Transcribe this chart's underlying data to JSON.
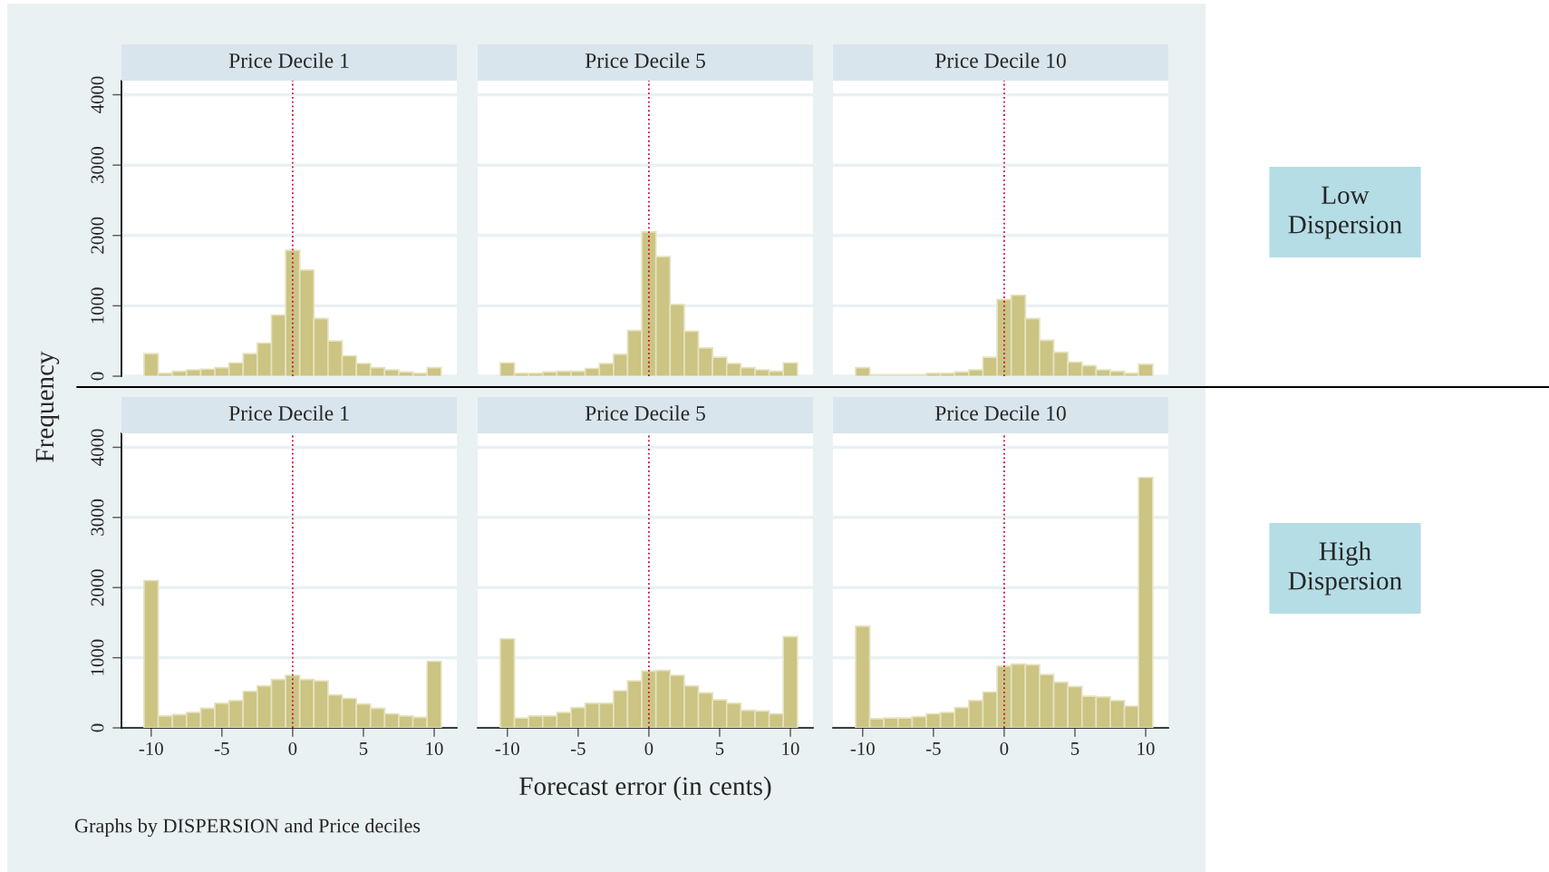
{
  "chart_data": [
    {
      "type": "histogram",
      "title": "Price Decile 1",
      "ylabel": "Frequency",
      "bins": [
        -10.5,
        -9.5,
        -8.5,
        -7.5,
        -6.5,
        -5.5,
        -4.5,
        -3.5,
        -2.5,
        -1.5,
        -0.5,
        0.5,
        1.5,
        2.5,
        3.5,
        4.5,
        5.5,
        6.5,
        7.5,
        8.5,
        9.5,
        10.5
      ],
      "values": [
        320,
        40,
        70,
        90,
        100,
        120,
        190,
        320,
        470,
        870,
        1790,
        1510,
        820,
        500,
        290,
        180,
        120,
        90,
        60,
        40,
        120
      ],
      "color": "#cbc483",
      "xlim": [
        -12.1,
        11.6
      ],
      "ylim": [
        0,
        4200
      ],
      "xticks": [
        -10,
        -5,
        0,
        5,
        10
      ],
      "yticks": [
        0,
        1000,
        2000,
        3000,
        4000
      ],
      "grid": "y",
      "tick_labels": "y",
      "ref_lines": [
        {
          "axis": "x",
          "value": 0,
          "color": "#c8103c",
          "line_style": "dotted"
        }
      ]
    },
    {
      "type": "histogram",
      "title": "Price Decile 5",
      "bins": [
        -10.5,
        -9.5,
        -8.5,
        -7.5,
        -6.5,
        -5.5,
        -4.5,
        -3.5,
        -2.5,
        -1.5,
        -0.5,
        0.5,
        1.5,
        2.5,
        3.5,
        4.5,
        5.5,
        6.5,
        7.5,
        8.5,
        9.5,
        10.5
      ],
      "values": [
        190,
        40,
        40,
        60,
        70,
        70,
        110,
        180,
        310,
        650,
        2050,
        1700,
        1020,
        640,
        400,
        270,
        180,
        120,
        90,
        70,
        190
      ],
      "color": "#cbc483",
      "xlim": [
        -12.1,
        11.6
      ],
      "ylim": [
        0,
        4200
      ],
      "xticks": [
        -10,
        -5,
        0,
        5,
        10
      ],
      "yticks": [
        0,
        1000,
        2000,
        3000,
        4000
      ],
      "grid": "y",
      "tick_labels": false,
      "ref_lines": [
        {
          "axis": "x",
          "value": 0,
          "color": "#c8103c",
          "line_style": "dotted"
        }
      ]
    },
    {
      "type": "histogram",
      "title": "Price Decile 10",
      "annotations": [
        "Low\nDispersion"
      ],
      "bins": [
        -10.5,
        -9.5,
        -8.5,
        -7.5,
        -6.5,
        -5.5,
        -4.5,
        -3.5,
        -2.5,
        -1.5,
        -0.5,
        0.5,
        1.5,
        2.5,
        3.5,
        4.5,
        5.5,
        6.5,
        7.5,
        8.5,
        9.5,
        10.5
      ],
      "values": [
        120,
        20,
        20,
        20,
        20,
        40,
        40,
        60,
        90,
        270,
        1090,
        1150,
        820,
        510,
        340,
        200,
        150,
        90,
        70,
        40,
        170
      ],
      "color": "#cbc483",
      "xlim": [
        -12.1,
        11.6
      ],
      "ylim": [
        0,
        4200
      ],
      "xticks": [
        -10,
        -5,
        0,
        5,
        10
      ],
      "yticks": [
        0,
        1000,
        2000,
        3000,
        4000
      ],
      "grid": "y",
      "tick_labels": false,
      "ref_lines": [
        {
          "axis": "x",
          "value": 0,
          "color": "#c8103c",
          "line_style": "dotted"
        }
      ]
    },
    {
      "type": "histogram",
      "title": "Price Decile 1",
      "annotations": [
        "Graphs by DISPERSION and Price deciles"
      ],
      "bins": [
        -10.5,
        -9.5,
        -8.5,
        -7.5,
        -6.5,
        -5.5,
        -4.5,
        -3.5,
        -2.5,
        -1.5,
        -0.5,
        0.5,
        1.5,
        2.5,
        3.5,
        4.5,
        5.5,
        6.5,
        7.5,
        8.5,
        9.5,
        10.5
      ],
      "values": [
        2100,
        170,
        190,
        220,
        280,
        350,
        390,
        520,
        600,
        690,
        750,
        690,
        670,
        470,
        420,
        340,
        280,
        200,
        170,
        150,
        950
      ],
      "color": "#cbc483",
      "xlim": [
        -12.1,
        11.6
      ],
      "ylim": [
        0,
        4200
      ],
      "xticks": [
        -10,
        -5,
        0,
        5,
        10
      ],
      "yticks": [
        0,
        1000,
        2000,
        3000,
        4000
      ],
      "grid": "y",
      "ref_lines": [
        {
          "axis": "x",
          "value": 0,
          "color": "#c8103c",
          "line_style": "dotted"
        }
      ]
    },
    {
      "type": "histogram",
      "title": "Price Decile 5",
      "xlabel": "Forecast error (in cents)",
      "bins": [
        -10.5,
        -9.5,
        -8.5,
        -7.5,
        -6.5,
        -5.5,
        -4.5,
        -3.5,
        -2.5,
        -1.5,
        -0.5,
        0.5,
        1.5,
        2.5,
        3.5,
        4.5,
        5.5,
        6.5,
        7.5,
        8.5,
        9.5,
        10.5
      ],
      "values": [
        1270,
        140,
        170,
        170,
        220,
        290,
        350,
        350,
        530,
        670,
        810,
        820,
        750,
        600,
        500,
        400,
        350,
        250,
        240,
        200,
        1300
      ],
      "color": "#cbc483",
      "xlim": [
        -12.1,
        11.6
      ],
      "ylim": [
        0,
        4200
      ],
      "xticks": [
        -10,
        -5,
        0,
        5,
        10
      ],
      "yticks": [
        0,
        1000,
        2000,
        3000,
        4000
      ],
      "grid": "y",
      "tick_labels": "x",
      "ref_lines": [
        {
          "axis": "x",
          "value": 0,
          "color": "#c8103c",
          "line_style": "dotted"
        }
      ]
    },
    {
      "type": "histogram",
      "title": "Price Decile 10",
      "annotations": [
        "High\nDispersion"
      ],
      "bins": [
        -10.5,
        -9.5,
        -8.5,
        -7.5,
        -6.5,
        -5.5,
        -4.5,
        -3.5,
        -2.5,
        -1.5,
        -0.5,
        0.5,
        1.5,
        2.5,
        3.5,
        4.5,
        5.5,
        6.5,
        7.5,
        8.5,
        9.5,
        10.5
      ],
      "values": [
        1450,
        130,
        140,
        140,
        160,
        200,
        220,
        290,
        390,
        510,
        880,
        910,
        900,
        760,
        650,
        590,
        450,
        440,
        390,
        310,
        3570
      ],
      "color": "#cbc483",
      "xlim": [
        -12.1,
        11.6
      ],
      "ylim": [
        0,
        4200
      ],
      "xticks": [
        -10,
        -5,
        0,
        5,
        10
      ],
      "yticks": [
        0,
        1000,
        2000,
        3000,
        4000
      ],
      "grid": "y",
      "tick_labels": "x",
      "ref_lines": [
        {
          "axis": "x",
          "value": 0,
          "color": "#c8103c",
          "line_style": "dotted"
        }
      ]
    }
  ]
}
